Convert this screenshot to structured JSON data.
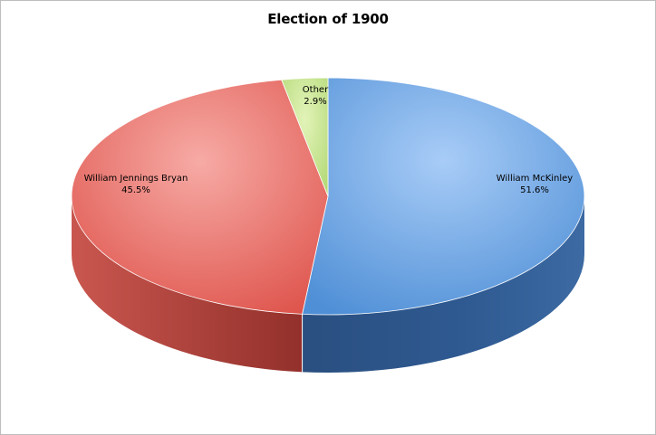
{
  "chart_data": {
    "type": "pie",
    "title": "Election of 1900",
    "slices": [
      {
        "label": "William McKinley",
        "percent_label": "51.6%",
        "value": 51.6,
        "color": "#5b9bd5"
      },
      {
        "label": "William Jennings Bryan",
        "percent_label": "45.5%",
        "value": 45.5,
        "color": "#e8615a"
      },
      {
        "label": "Other",
        "percent_label": "2.9%",
        "value": 2.9,
        "color": "#c5e28c"
      }
    ],
    "legend": "none",
    "three_d": true
  }
}
